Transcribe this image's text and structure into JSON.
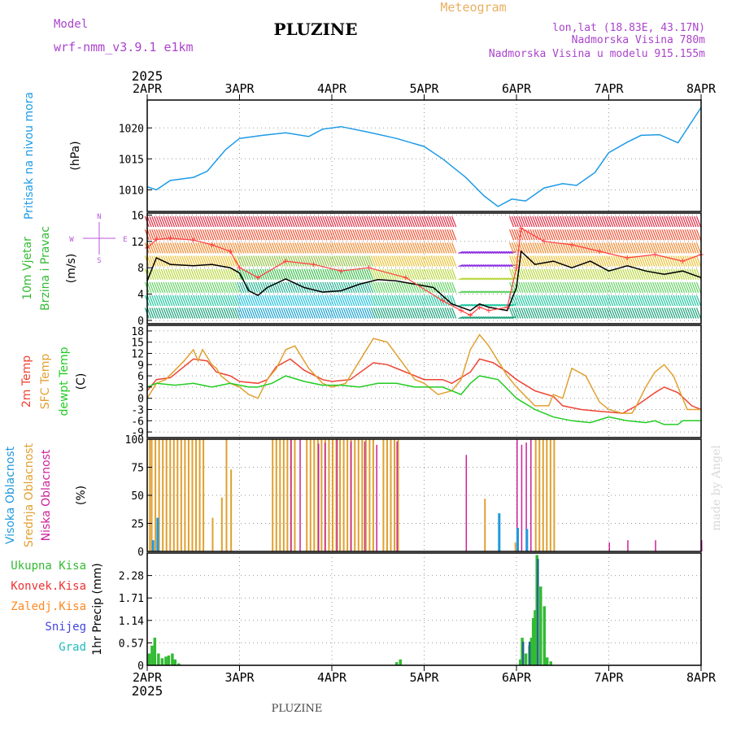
{
  "header": {
    "model_label": "Model",
    "model_name": "wrf-nmm_v3.9.1 e1km",
    "station": "PLUZINE",
    "product": "Meteogram",
    "coords": "lon,lat (18.83E, 43.17N)",
    "altitude": "Nadmorska Visina 780m",
    "model_altitude": "Nadmorska Visina u modelu 915.155m",
    "footer_station": "PLUZINE",
    "credit": "made by Angel"
  },
  "colors": {
    "pressure": "#1e9be6",
    "wind_avg": "#000000",
    "gust": "#ff4040",
    "t2m": "#ee4433",
    "sfc": "#e0a030",
    "dewpt": "#22cc22",
    "cloud_high": "#2299dd",
    "cloud_mid": "#e0a030",
    "cloud_low": "#cc2299",
    "precip_total": "#33bb33",
    "precip_conv": "#ee3333",
    "precip_grid": "#ff8822",
    "precip_snow": "#4444dd",
    "precip_graupel": "#22bbbb",
    "header_purple": "#aa44cc",
    "header_orange": "#e8b060"
  },
  "chart_data": {
    "type": "line",
    "year": "2025",
    "x_axis": {
      "ticks": [
        "2APR",
        "3APR",
        "4APR",
        "5APR",
        "6APR",
        "7APR",
        "8APR"
      ],
      "range_days": [
        0,
        6
      ]
    },
    "panels": [
      {
        "id": "pressure",
        "labels": [
          "Pritisak na nivou mora"
        ],
        "unit": "(hPa)",
        "yticks": [
          "1010",
          "1015",
          "1020"
        ],
        "ylim": [
          1006.5,
          1024.5
        ],
        "series": [
          {
            "key": "pressure",
            "x": [
              0,
              0.1,
              0.25,
              0.5,
              0.65,
              0.85,
              1.0,
              1.25,
              1.5,
              1.75,
              1.9,
              2.1,
              2.4,
              2.7,
              3.0,
              3.2,
              3.45,
              3.65,
              3.8,
              3.95,
              4.1,
              4.3,
              4.5,
              4.65,
              4.85,
              5.0,
              5.2,
              5.35,
              5.55,
              5.75,
              6.0
            ],
            "y": [
              1010.5,
              1010.0,
              1011.5,
              1012.0,
              1013.0,
              1016.5,
              1018.3,
              1018.8,
              1019.2,
              1018.6,
              1019.8,
              1020.2,
              1019.3,
              1018.3,
              1017.0,
              1015.0,
              1012.0,
              1009.0,
              1007.3,
              1008.5,
              1008.2,
              1010.3,
              1011.0,
              1010.7,
              1012.8,
              1016.0,
              1017.7,
              1018.8,
              1018.9,
              1017.6,
              1023.3
            ]
          }
        ]
      },
      {
        "id": "wind",
        "labels": [
          "10m Vjetar",
          "Brzina i Pravac"
        ],
        "unit": "(m/s)",
        "compass": {
          "n": "N",
          "s": "S",
          "e": "E",
          "w": "W"
        },
        "yticks": [
          "0",
          "4",
          "8",
          "12",
          "16"
        ],
        "ylim": [
          -0.5,
          16.3
        ],
        "series": [
          {
            "key": "wind_avg",
            "x": [
              0,
              0.1,
              0.25,
              0.5,
              0.7,
              0.9,
              1.0,
              1.1,
              1.2,
              1.3,
              1.5,
              1.7,
              1.9,
              2.1,
              2.3,
              2.5,
              2.7,
              2.9,
              3.1,
              3.3,
              3.5,
              3.6,
              3.7,
              3.9,
              4.0,
              4.05,
              4.2,
              4.4,
              4.6,
              4.8,
              5.0,
              5.2,
              5.4,
              5.6,
              5.8,
              6.0
            ],
            "y": [
              6,
              9.5,
              8.5,
              8.3,
              8.5,
              8.0,
              7.2,
              4.5,
              3.8,
              5.0,
              6.3,
              5.0,
              4.3,
              4.5,
              5.5,
              6.2,
              6.0,
              5.5,
              5.0,
              2.5,
              1.5,
              2.5,
              2.0,
              1.5,
              5.0,
              10.5,
              8.5,
              9.0,
              8.0,
              9.0,
              7.5,
              8.3,
              7.5,
              7.0,
              7.5,
              6.5
            ]
          },
          {
            "key": "gust",
            "x": [
              0,
              0.1,
              0.25,
              0.5,
              0.7,
              0.9,
              1.0,
              1.2,
              1.5,
              1.8,
              2.1,
              2.4,
              2.8,
              3.2,
              3.4,
              3.5,
              3.6,
              3.7,
              3.9,
              4.0,
              4.05,
              4.3,
              4.6,
              4.9,
              5.2,
              5.5,
              5.8,
              6.0
            ],
            "y": [
              11,
              12.3,
              12.5,
              12.2,
              11.5,
              10.5,
              8.0,
              6.5,
              9.0,
              8.5,
              7.5,
              8.0,
              6.5,
              3.0,
              1.5,
              0.8,
              2.0,
              1.5,
              2.0,
              8.0,
              14.0,
              12.0,
              11.5,
              10.5,
              9.5,
              10.0,
              9.0,
              10.0
            ]
          }
        ]
      },
      {
        "id": "temp",
        "labels": [
          "2m Temp",
          "SFC Temp",
          "dewpt Temp"
        ],
        "unit": "(C)",
        "yticks": [
          "-9",
          "-6",
          "-3",
          "0",
          "3",
          "6",
          "9",
          "12",
          "15",
          "18"
        ],
        "ylim": [
          -10.5,
          19.5
        ],
        "series": [
          {
            "key": "t2m",
            "x": [
              0,
              0.1,
              0.25,
              0.5,
              0.65,
              0.75,
              0.9,
              1.0,
              1.2,
              1.3,
              1.4,
              1.55,
              1.7,
              1.9,
              2.0,
              2.2,
              2.45,
              2.6,
              2.8,
              3.0,
              3.2,
              3.3,
              3.5,
              3.6,
              3.75,
              3.9,
              4.0,
              4.2,
              4.4,
              4.5,
              4.7,
              4.9,
              5.15,
              5.3,
              5.5,
              5.6,
              5.75,
              5.9,
              6.0
            ],
            "y": [
              2,
              5,
              5.5,
              10.5,
              10,
              7,
              6,
              4.5,
              4,
              5,
              8.5,
              10.5,
              7.5,
              5,
              4.5,
              5,
              9.5,
              9,
              7,
              5,
              5,
              4,
              7,
              10.5,
              9.5,
              7,
              5,
              2,
              0.5,
              -2,
              -3,
              -3.5,
              -4,
              -2,
              1.5,
              3,
              1.5,
              -2,
              -3
            ]
          },
          {
            "key": "sfc",
            "x": [
              0,
              0.1,
              0.2,
              0.4,
              0.5,
              0.55,
              0.6,
              0.65,
              0.7,
              0.75,
              0.8,
              0.9,
              1.0,
              1.1,
              1.2,
              1.3,
              1.4,
              1.5,
              1.6,
              1.75,
              1.9,
              2.0,
              2.15,
              2.3,
              2.45,
              2.6,
              2.75,
              2.9,
              3.0,
              3.15,
              3.3,
              3.4,
              3.5,
              3.6,
              3.7,
              3.8,
              3.9,
              4.0,
              4.2,
              4.35,
              4.4,
              4.5,
              4.6,
              4.75,
              4.9,
              5.0,
              5.15,
              5.25,
              5.3,
              5.4,
              5.5,
              5.6,
              5.7,
              5.85,
              6.0
            ],
            "y": [
              0,
              4,
              5,
              10,
              13,
              10,
              13,
              11,
              9,
              8,
              6,
              4,
              3,
              1,
              0,
              5,
              8,
              13,
              14,
              8,
              4,
              3,
              4,
              10,
              16,
              15,
              10,
              5,
              4,
              1,
              2,
              5,
              13,
              17,
              14,
              10,
              6,
              3,
              -2,
              -2,
              1,
              0,
              8,
              6,
              -1,
              -3,
              -4,
              -4,
              -2,
              3,
              7,
              9,
              6,
              -3,
              -3
            ]
          },
          {
            "key": "dewpt",
            "x": [
              0,
              0.1,
              0.3,
              0.5,
              0.7,
              0.9,
              1.1,
              1.2,
              1.35,
              1.5,
              1.7,
              1.9,
              2.1,
              2.3,
              2.5,
              2.7,
              2.9,
              3.0,
              3.2,
              3.4,
              3.5,
              3.6,
              3.8,
              4.0,
              4.2,
              4.4,
              4.6,
              4.8,
              5.0,
              5.2,
              5.4,
              5.5,
              5.6,
              5.75,
              5.8,
              5.9,
              6.0
            ],
            "y": [
              3,
              4,
              3.5,
              4,
              3,
              4,
              3,
              3,
              4,
              6,
              4.5,
              3.5,
              3.5,
              3,
              4,
              4,
              3,
              3,
              3,
              1,
              4,
              6,
              5,
              0,
              -3,
              -5,
              -6,
              -6.5,
              -5,
              -6,
              -6.5,
              -6,
              -7,
              -7,
              -6,
              -6,
              -6
            ]
          }
        ]
      },
      {
        "id": "cloud",
        "labels": [
          "Visoka Oblacnost",
          "Srednja Oblacnost",
          "Niska Oblacnost"
        ],
        "unit": "(%)",
        "yticks": [
          "0",
          "25",
          "50",
          "75",
          "100"
        ],
        "ylim": [
          0,
          100
        ],
        "mid_spans_full": [
          [
            0.04,
            0.62
          ],
          [
            1.35,
            1.6
          ],
          [
            1.72,
            2.45
          ],
          [
            2.55,
            2.72
          ],
          [
            4.2,
            4.4
          ]
        ],
        "mid_extra": [
          [
            0.02,
            100
          ],
          [
            0.7,
            30
          ],
          [
            0.8,
            48
          ],
          [
            0.85,
            100
          ],
          [
            0.9,
            73
          ],
          [
            3.65,
            47
          ],
          [
            3.98,
            8
          ]
        ],
        "high_bars": [
          [
            0.05,
            10
          ],
          [
            0.1,
            30
          ],
          [
            3.8,
            34
          ],
          [
            4.0,
            21
          ],
          [
            4.1,
            20
          ]
        ],
        "low_bars": [
          [
            1.55,
            100
          ],
          [
            1.65,
            100
          ],
          [
            1.85,
            96
          ],
          [
            1.92,
            97
          ],
          [
            2.05,
            100
          ],
          [
            2.2,
            98
          ],
          [
            2.35,
            98
          ],
          [
            2.48,
            95
          ],
          [
            2.7,
            98
          ],
          [
            3.45,
            86
          ],
          [
            4.0,
            100
          ],
          [
            4.05,
            95
          ],
          [
            4.1,
            97
          ],
          [
            4.15,
            100
          ],
          [
            5.0,
            8
          ],
          [
            5.2,
            10
          ],
          [
            5.5,
            10
          ],
          [
            6.0,
            10
          ]
        ]
      },
      {
        "id": "precip",
        "labels": [
          "Ukupna Kisa",
          "Konvek.Kisa",
          "Zaledj.Kisa",
          "Snijeg",
          "Grad"
        ],
        "unit": "1hr Precip (mm)",
        "yticks": [
          "0",
          "0.57",
          "1.14",
          "1.71",
          "2.28"
        ],
        "ylim": [
          0,
          2.85
        ],
        "total_bars": [
          [
            0.02,
            0.3
          ],
          [
            0.05,
            0.5
          ],
          [
            0.08,
            0.7
          ],
          [
            0.12,
            0.3
          ],
          [
            0.16,
            0.18
          ],
          [
            0.2,
            0.22
          ],
          [
            0.23,
            0.25
          ],
          [
            0.27,
            0.3
          ],
          [
            0.3,
            0.15
          ],
          [
            0.34,
            0.05
          ],
          [
            2.7,
            0.08
          ],
          [
            2.74,
            0.15
          ],
          [
            4.04,
            0.15
          ],
          [
            4.06,
            0.7
          ],
          [
            4.1,
            0.3
          ],
          [
            4.14,
            0.5
          ],
          [
            4.16,
            0.7
          ],
          [
            4.18,
            1.2
          ],
          [
            4.2,
            1.4
          ],
          [
            4.22,
            2.8
          ],
          [
            4.26,
            2.0
          ],
          [
            4.3,
            1.5
          ],
          [
            4.33,
            0.2
          ],
          [
            4.37,
            0.1
          ]
        ],
        "snow_bars": [
          [
            4.07,
            0.6
          ],
          [
            4.14,
            0.6
          ],
          [
            4.23,
            2.7
          ]
        ]
      }
    ]
  }
}
